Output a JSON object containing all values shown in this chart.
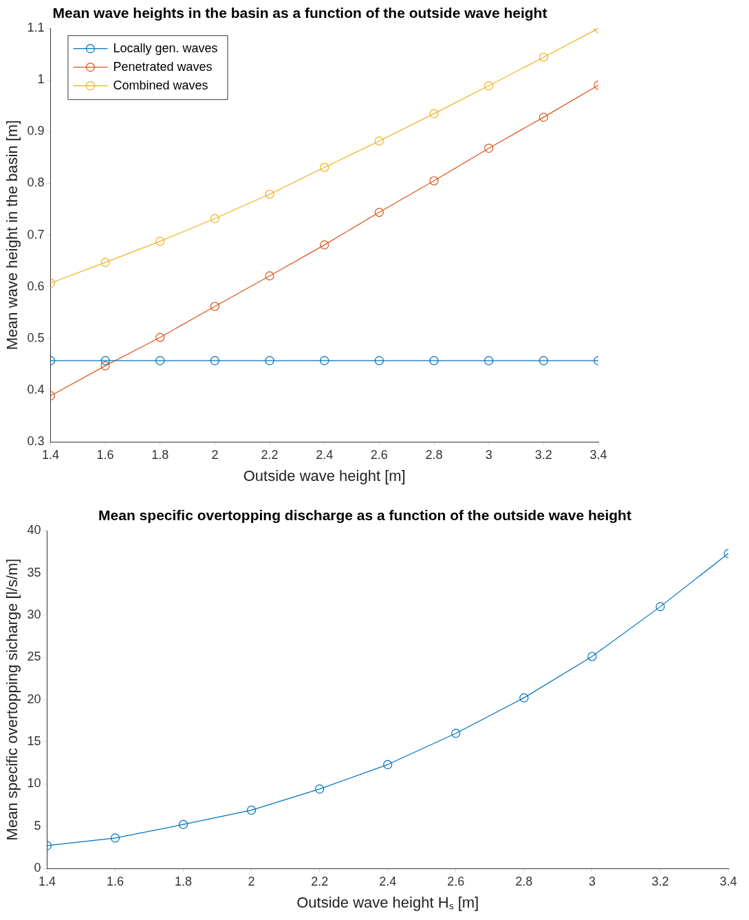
{
  "chart_data": [
    {
      "type": "line",
      "title": "Mean wave heights in the basin as a function of the outside wave height",
      "xlabel": "Outside wave height [m]",
      "ylabel": "Mean wave height in the basin [m]",
      "x": [
        1.4,
        1.6,
        1.8,
        2,
        2.2,
        2.4,
        2.6,
        2.8,
        3,
        3.2,
        3.4
      ],
      "series": [
        {
          "name": "Locally gen. waves",
          "color": "#0072bd",
          "values": [
            0.457,
            0.457,
            0.457,
            0.457,
            0.457,
            0.457,
            0.457,
            0.457,
            0.457,
            0.457,
            0.457
          ]
        },
        {
          "name": "Penetrated waves",
          "color": "#d95319",
          "values": [
            0.389,
            0.447,
            0.502,
            0.562,
            0.621,
            0.681,
            0.744,
            0.805,
            0.868,
            0.928,
            0.99
          ]
        },
        {
          "name": "Combined waves",
          "color": "#edb120",
          "values": [
            0.607,
            0.647,
            0.688,
            0.732,
            0.779,
            0.831,
            0.882,
            0.935,
            0.989,
            1.044,
            1.1
          ]
        }
      ],
      "xlim": [
        1.4,
        3.4
      ],
      "xticks": [
        1.4,
        1.6,
        1.8,
        2,
        2.2,
        2.4,
        2.6,
        2.8,
        3,
        3.2,
        3.4
      ],
      "ylim": [
        0.3,
        1.1
      ],
      "yticks": [
        0.3,
        0.4,
        0.5,
        0.6,
        0.7,
        0.8,
        0.9,
        1,
        1.1
      ],
      "grid": false,
      "legend": "top left",
      "marker": "circle",
      "line_style": "solid"
    },
    {
      "type": "line",
      "title": "Mean specific overtopping discharge as a function of the outside wave height",
      "xlabel": "Outside wave height Hₛ [m]",
      "ylabel": "Mean specific overtopping sicharge [l/s/m]",
      "x": [
        1.4,
        1.6,
        1.8,
        2,
        2.2,
        2.4,
        2.6,
        2.8,
        3,
        3.2,
        3.4
      ],
      "series": [
        {
          "color": "#0072bd",
          "values": [
            2.7,
            3.6,
            5.2,
            6.9,
            9.4,
            12.3,
            16.0,
            20.2,
            25.1,
            31.0,
            37.3
          ]
        }
      ],
      "xlim": [
        1.4,
        3.4
      ],
      "xticks": [
        1.4,
        1.6,
        1.8,
        2,
        2.2,
        2.4,
        2.6,
        2.8,
        3,
        3.2,
        3.4
      ],
      "ylim": [
        0,
        40
      ],
      "yticks": [
        0,
        5,
        10,
        15,
        20,
        25,
        30,
        35,
        40
      ],
      "grid": false,
      "legend": false,
      "marker": "circle",
      "line_style": "solid"
    }
  ]
}
